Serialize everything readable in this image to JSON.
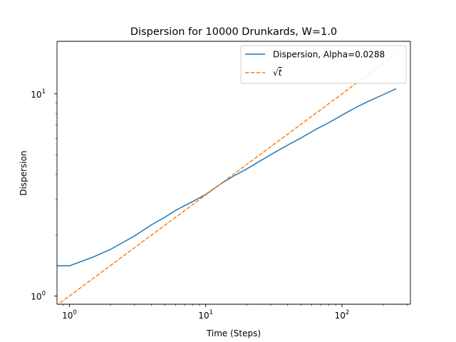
{
  "chart_data": {
    "type": "line",
    "title": "Dispersion for 10000 Drunkards, W=1.0",
    "xlabel": "Time (Steps)",
    "ylabel": "Dispersion",
    "xscale": "log",
    "yscale": "log",
    "xlim": [
      0.81,
      318
    ],
    "ylim": [
      0.91,
      18.2
    ],
    "grid": false,
    "legend_position": "top-right",
    "x_ticks": [
      {
        "value": 1,
        "base": "10",
        "exp": "0"
      },
      {
        "value": 10,
        "base": "10",
        "exp": "1"
      },
      {
        "value": 100,
        "base": "10",
        "exp": "2"
      }
    ],
    "y_ticks": [
      {
        "value": 1,
        "base": "10",
        "exp": "0"
      },
      {
        "value": 10,
        "base": "10",
        "exp": "1"
      }
    ],
    "series": [
      {
        "name": "Dispersion, Alpha=0.0288",
        "color": "#1f77b4",
        "style": "solid",
        "points": [
          [
            0.5,
            1.41
          ],
          [
            1,
            1.41
          ],
          [
            1.5,
            1.56
          ],
          [
            2,
            1.7
          ],
          [
            3,
            1.98
          ],
          [
            4,
            2.25
          ],
          [
            5,
            2.45
          ],
          [
            6,
            2.65
          ],
          [
            8,
            2.93
          ],
          [
            10,
            3.18
          ],
          [
            13,
            3.6
          ],
          [
            16,
            3.92
          ],
          [
            20,
            4.25
          ],
          [
            25,
            4.65
          ],
          [
            30,
            5.0
          ],
          [
            40,
            5.58
          ],
          [
            50,
            6.05
          ],
          [
            65,
            6.7
          ],
          [
            80,
            7.2
          ],
          [
            100,
            7.85
          ],
          [
            130,
            8.65
          ],
          [
            160,
            9.25
          ],
          [
            200,
            9.9
          ],
          [
            250,
            10.6
          ]
        ]
      },
      {
        "name": "√t",
        "color": "#ff7f0e",
        "style": "dashed",
        "points": [
          [
            0.5,
            0.707
          ],
          [
            1,
            1.0
          ],
          [
            2,
            1.414
          ],
          [
            4,
            2.0
          ],
          [
            8,
            2.828
          ],
          [
            16,
            4.0
          ],
          [
            32,
            5.657
          ],
          [
            64,
            8.0
          ],
          [
            128,
            11.31
          ],
          [
            250,
            15.81
          ]
        ]
      }
    ],
    "legend": {
      "label_1": "Dispersion, Alpha=0.0288",
      "label_2_base": "√",
      "label_2_var": "t"
    }
  }
}
